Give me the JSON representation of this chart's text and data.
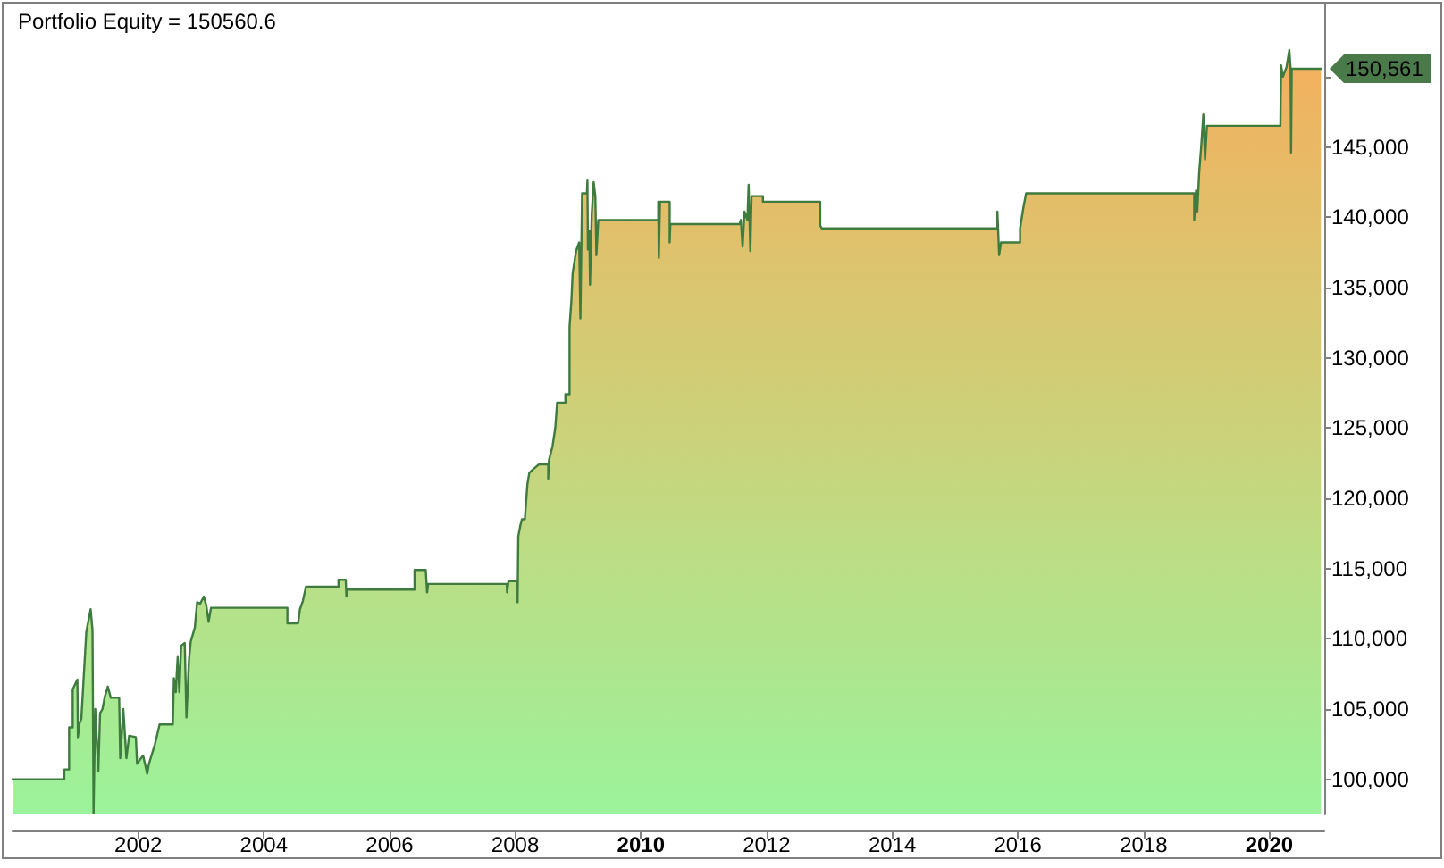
{
  "chart_data": {
    "type": "area",
    "title": "Portfolio Equity = 150560.6",
    "color": "#3f7a3f",
    "x": [
      "2000-01-01",
      "2000-10-28",
      "2000-10-28",
      "2000-11-25",
      "2000-11-25",
      "2000-12-16",
      "2000-12-16",
      "2001-01-12",
      "2001-01-15",
      "2001-01-25",
      "2001-02-04",
      "2001-03-05",
      "2001-03-30",
      "2001-04-10",
      "2001-04-16",
      "2001-04-26",
      "2001-05-14",
      "2001-05-24",
      "2001-06-07",
      "2001-06-21",
      "2001-07-08",
      "2001-07-25",
      "2001-09-12",
      "2001-09-18",
      "2001-10-06",
      "2001-10-24",
      "2001-11-09",
      "2001-12-18",
      "2001-12-25",
      "2002-01-29",
      "2002-02-22",
      "2002-03-04",
      "2002-04-08",
      "2002-05-05",
      "2002-07-21",
      "2002-07-27",
      "2002-08-07",
      "2002-08-18",
      "2002-08-28",
      "2002-09-07",
      "2002-09-28",
      "2002-10-08",
      "2002-10-23",
      "2002-11-02",
      "2002-11-26",
      "2002-12-09",
      "2002-12-27",
      "2003-01-17",
      "2003-01-31",
      "2003-02-14",
      "2003-02-28",
      "2004-05-17",
      "2004-05-17",
      "2004-07-18",
      "2004-07-29",
      "2004-08-15",
      "2004-09-02",
      "2005-03-10",
      "2005-03-10",
      "2005-04-21",
      "2005-04-25",
      "2005-04-28",
      "2006-05-26",
      "2006-05-26",
      "2006-07-30",
      "2006-08-07",
      "2006-08-13",
      "2007-11-13",
      "2007-11-15",
      "2007-11-23",
      "2008-01-15",
      "2008-01-15",
      "2008-01-19",
      "2008-01-30",
      "2008-02-09",
      "2008-02-26",
      "2008-03-12",
      "2008-03-23",
      "2008-04-09",
      "2008-05-17",
      "2008-07-11",
      "2008-07-11",
      "2008-07-15",
      "2008-08-05",
      "2008-08-21",
      "2008-09-01",
      "2008-10-19",
      "2008-10-19",
      "2008-11-12",
      "2008-11-12",
      "2008-11-23",
      "2008-11-30",
      "2008-12-20",
      "2009-01-07",
      "2009-01-14",
      "2009-01-24",
      "2009-02-21",
      "2009-02-24",
      "2009-02-27",
      "2009-03-07",
      "2009-03-11",
      "2009-03-21",
      "2009-04-01",
      "2009-04-11",
      "2009-04-17",
      "2009-04-28",
      "2010-04-12",
      "2010-04-12",
      "2010-04-15",
      "2010-04-22",
      "2010-06-17",
      "2010-06-17",
      "2010-06-21",
      "2011-07-28",
      "2011-08-05",
      "2011-08-15",
      "2011-08-26",
      "2011-09-12",
      "2011-09-19",
      "2011-09-29",
      "2011-10-06",
      "2011-12-11",
      "2011-12-11",
      "2012-11-08",
      "2012-11-08",
      "2012-11-18",
      "2015-09-04",
      "2015-09-04",
      "2015-09-14",
      "2015-09-25",
      "2016-01-14",
      "2016-01-14",
      "2016-02-01",
      "2016-02-18",
      "2018-10-22",
      "2018-10-22",
      "2018-11-02",
      "2018-11-09",
      "2018-11-20",
      "2018-12-01",
      "2018-12-14",
      "2018-12-24",
      "2019-01-04",
      "2020-03-06",
      "2020-03-10",
      "2020-03-21",
      "2020-04-11",
      "2020-04-27",
      "2020-05-04",
      "2020-05-07",
      "2020-05-11",
      "2020-10-28"
    ],
    "values": [
      100000,
      100000,
      100700,
      100700,
      103700,
      103700,
      106400,
      107100,
      103000,
      104000,
      104300,
      110500,
      112100,
      110600,
      97600,
      105000,
      100600,
      104700,
      105000,
      105900,
      106600,
      105800,
      105800,
      101500,
      105000,
      101500,
      103100,
      103000,
      101100,
      101700,
      100400,
      101100,
      102500,
      103900,
      103900,
      107200,
      106200,
      108700,
      106200,
      109500,
      109700,
      104400,
      108500,
      109800,
      110800,
      112600,
      112500,
      113000,
      112400,
      111200,
      112200,
      112200,
      111100,
      111100,
      112100,
      112700,
      113700,
      113700,
      114200,
      114200,
      113000,
      113500,
      113500,
      114900,
      114900,
      113300,
      113900,
      113900,
      113300,
      114100,
      114100,
      112600,
      117300,
      118000,
      118500,
      118500,
      121000,
      121800,
      122000,
      122400,
      122400,
      121400,
      122700,
      123700,
      125000,
      126800,
      126800,
      127400,
      127400,
      132200,
      134100,
      136000,
      137600,
      138200,
      132800,
      141700,
      141700,
      142600,
      137700,
      139000,
      135200,
      140200,
      142500,
      141500,
      137300,
      139800,
      139800,
      141100,
      137100,
      141100,
      141100,
      138200,
      139500,
      139500,
      139800,
      137900,
      140400,
      139800,
      142300,
      137600,
      141500,
      141500,
      141100,
      141100,
      139400,
      139200,
      139200,
      140400,
      137300,
      138200,
      138200,
      139200,
      140600,
      141700,
      141700,
      139800,
      141900,
      140400,
      143200,
      144900,
      147300,
      144100,
      146500,
      146500,
      150800,
      150000,
      150700,
      151900,
      150600,
      144600,
      150561,
      150561
    ],
    "xlim": [
      "2000-01-01",
      "2020-11-16"
    ],
    "xticks": [
      "2002",
      "2004",
      "2006",
      "2008",
      "2010",
      "2012",
      "2014",
      "2016",
      "2018",
      "2020"
    ],
    "ylim": [
      97500,
      155200
    ],
    "yticks": [
      {
        "value": 100000,
        "label": "100,000"
      },
      {
        "value": 105000,
        "label": "105,000"
      },
      {
        "value": 110000,
        "label": "110,000"
      },
      {
        "value": 115000,
        "label": "115,000"
      },
      {
        "value": 120000,
        "label": "120,000"
      },
      {
        "value": 125000,
        "label": "125,000"
      },
      {
        "value": 130000,
        "label": "130,000"
      },
      {
        "value": 135000,
        "label": "135,000"
      },
      {
        "value": 140000,
        "label": "140,000"
      },
      {
        "value": 145000,
        "label": "145,000"
      },
      {
        "value": 150000,
        "label": null
      }
    ],
    "annotations": [
      {
        "text": "150,561",
        "x": "2020-10-28",
        "y": 150561
      }
    ]
  }
}
